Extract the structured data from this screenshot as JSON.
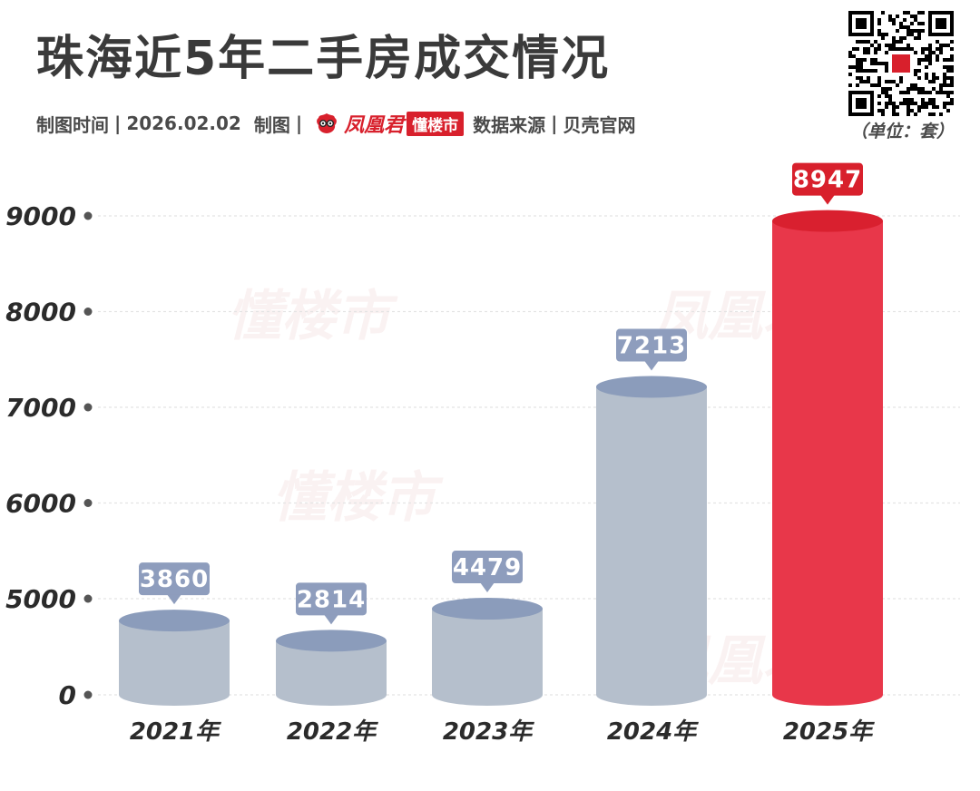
{
  "title": "珠海近5年二手房成交情况",
  "meta": {
    "date_label": "制图时间",
    "sep": "|",
    "date": "2026.02.02",
    "maker_label": "制图",
    "brand_name": "凤凰君",
    "brand_tag": "懂楼市",
    "source_label": "数据来源",
    "source": "贝壳官网"
  },
  "unit": "（单位：套）",
  "colors": {
    "normal_bar": "#b5bfcc",
    "normal_top": "#8b9cbb",
    "normal_label": "#8e9dbd",
    "highlight_bar": "#e8374a",
    "highlight_top": "#d9202f",
    "highlight_label": "#d8202c"
  },
  "chart_data": {
    "type": "bar",
    "title": "珠海近5年二手房成交情况",
    "categories": [
      "2021年",
      "2022年",
      "2023年",
      "2024年",
      "2025年"
    ],
    "values": [
      3860,
      2814,
      4479,
      7213,
      8947
    ],
    "y_tick_labels": [
      "0",
      "5000",
      "6000",
      "7000",
      "8000",
      "9000"
    ],
    "note": "Y axis is non-linear: 0 at base, 5000–9000 spaced evenly",
    "highlight_index": 4,
    "xlabel": "",
    "ylabel": "",
    "unit": "套"
  }
}
